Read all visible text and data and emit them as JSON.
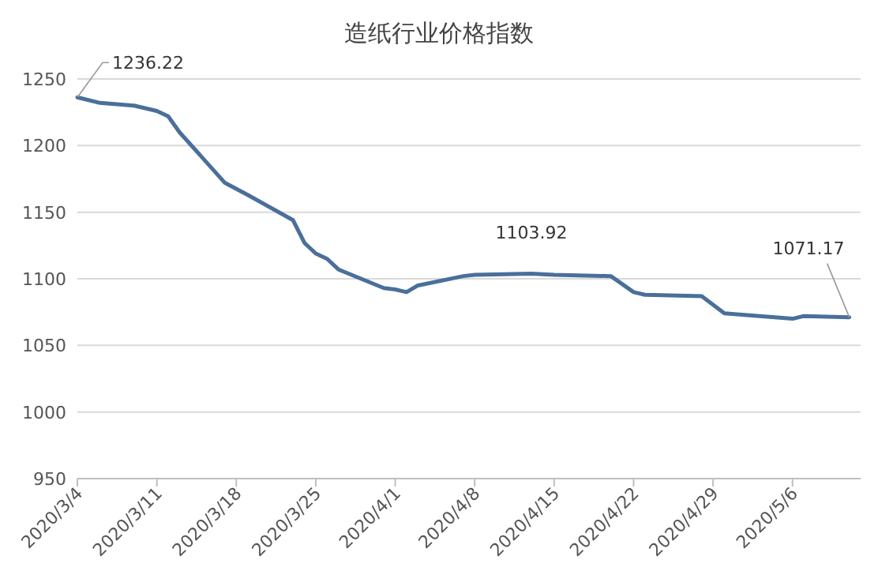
{
  "chart_data": {
    "type": "line",
    "title": "造纸行业价格指数",
    "x": [
      "2020-03-04",
      "2020-03-06",
      "2020-03-09",
      "2020-03-11",
      "2020-03-12",
      "2020-03-13",
      "2020-03-17",
      "2020-03-19",
      "2020-03-23",
      "2020-03-24",
      "2020-03-25",
      "2020-03-26",
      "2020-03-27",
      "2020-03-31",
      "2020-04-01",
      "2020-04-02",
      "2020-04-03",
      "2020-04-07",
      "2020-04-08",
      "2020-04-13",
      "2020-04-15",
      "2020-04-20",
      "2020-04-22",
      "2020-04-23",
      "2020-04-28",
      "2020-04-30",
      "2020-05-06",
      "2020-05-07",
      "2020-05-11"
    ],
    "series": [
      {
        "color": "#4a6f9a",
        "values": [
          1236.22,
          1232,
          1230,
          1226,
          1222,
          1210,
          1172,
          1163,
          1144,
          1127,
          1119,
          1115,
          1107,
          1093,
          1092,
          1090,
          1095,
          1102,
          1103,
          1103.92,
          1103,
          1102,
          1090,
          1088,
          1087,
          1074,
          1070,
          1072,
          1071.17
        ]
      }
    ],
    "xlim": [
      "2020-03-04",
      "2020-05-12"
    ],
    "xticks": [
      {
        "value": "2020-03-04",
        "label": "2020/3/4"
      },
      {
        "value": "2020-03-11",
        "label": "2020/3/11"
      },
      {
        "value": "2020-03-18",
        "label": "2020/3/18"
      },
      {
        "value": "2020-03-25",
        "label": "2020/3/25"
      },
      {
        "value": "2020-04-01",
        "label": "2020/4/1"
      },
      {
        "value": "2020-04-08",
        "label": "2020/4/8"
      },
      {
        "value": "2020-04-15",
        "label": "2020/4/15"
      },
      {
        "value": "2020-04-22",
        "label": "2020/4/22"
      },
      {
        "value": "2020-04-29",
        "label": "2020/4/29"
      },
      {
        "value": "2020-05-06",
        "label": "2020/5/6"
      }
    ],
    "ylim": [
      950,
      1250
    ],
    "yticks": [
      950,
      1000,
      1050,
      1100,
      1150,
      1200,
      1250
    ],
    "grid": "y",
    "marker": "none",
    "line_style": "solid",
    "annotations": [
      {
        "text": "1236.22",
        "x": "2020-03-04",
        "y": 1236.22
      },
      {
        "text": "1103.92",
        "x": "2020-04-13",
        "y": 1103.92
      },
      {
        "text": "1071.17",
        "x": "2020-05-11",
        "y": 1071.17
      }
    ]
  }
}
